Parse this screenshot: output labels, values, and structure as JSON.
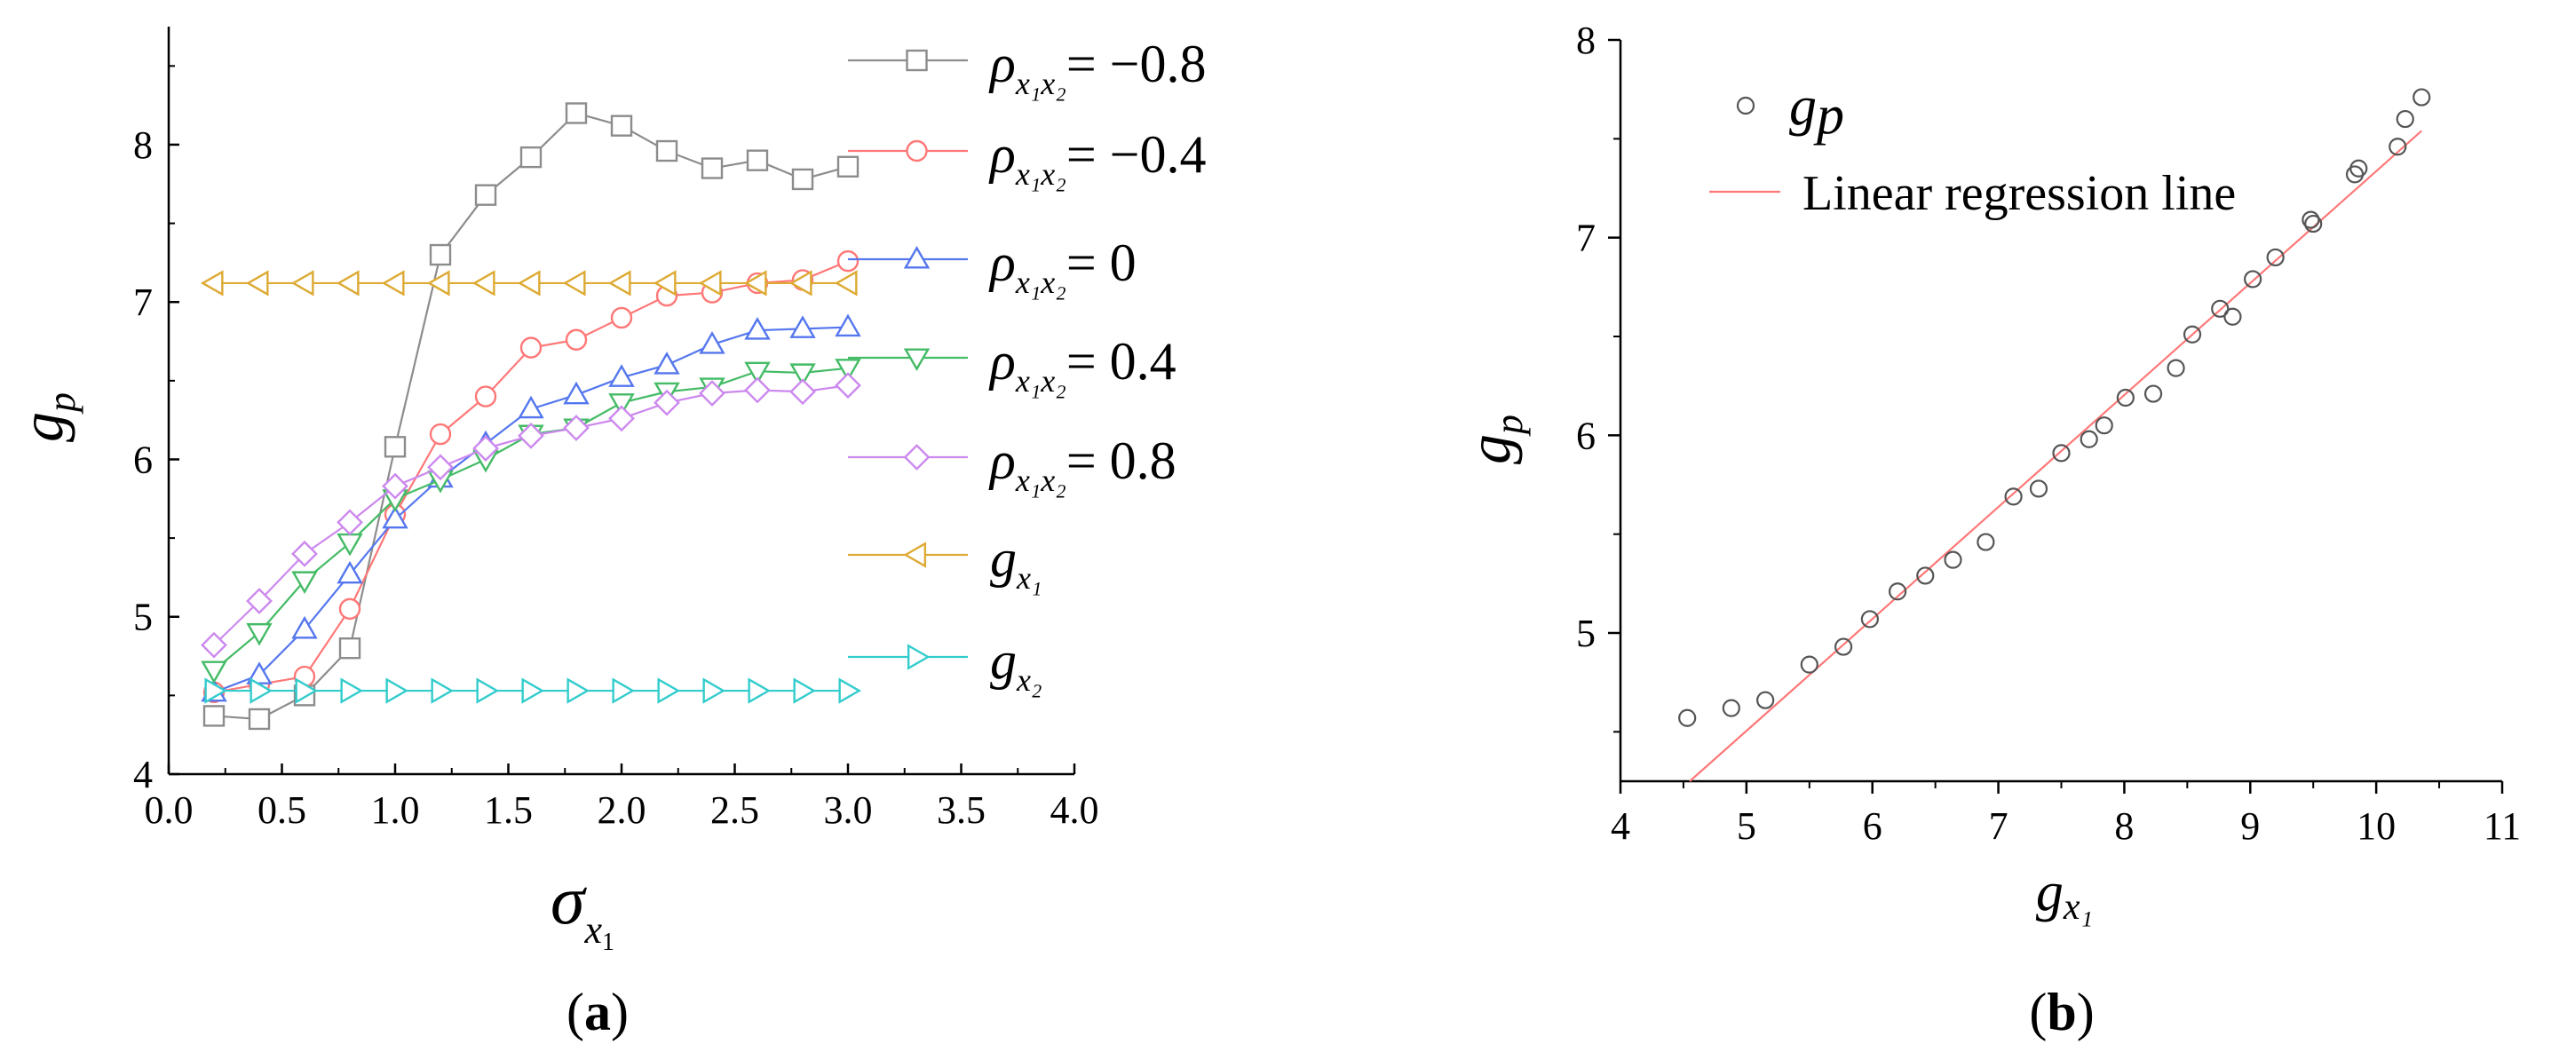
{
  "chart_data": [
    {
      "panel": "(a)",
      "type": "line",
      "xlabel": {
        "symbol": "σ",
        "sub": "x",
        "subsub": "1"
      },
      "ylabel": {
        "symbol": "g",
        "sub": "p"
      },
      "xlim": [
        0.0,
        4.0
      ],
      "ylim": [
        4,
        8.75
      ],
      "xticks": [
        "0.0",
        "0.5",
        "1.0",
        "1.5",
        "2.0",
        "2.5",
        "3.0",
        "3.5",
        "4.0"
      ],
      "yticks": [
        "4",
        "5",
        "6",
        "7",
        "8"
      ],
      "x": [
        0.2,
        0.4,
        0.6,
        0.8,
        1.0,
        1.2,
        1.4,
        1.6,
        1.8,
        2.0,
        2.2,
        2.4,
        2.6,
        2.8,
        3.0
      ],
      "series": [
        {
          "symbol": "ρ",
          "sub": "x₁x₂",
          "rest": "= −0.8",
          "color": "#8c8c8c",
          "marker": "square",
          "values": [
            4.37,
            4.35,
            4.5,
            4.8,
            6.08,
            7.3,
            7.68,
            7.92,
            8.2,
            8.12,
            7.96,
            7.85,
            7.9,
            7.78,
            7.86
          ]
        },
        {
          "symbol": "ρ",
          "sub": "x₁x₂",
          "rest": "= −0.4",
          "color": "#ff7777",
          "marker": "circle",
          "values": [
            4.52,
            4.57,
            4.62,
            5.05,
            5.65,
            6.16,
            6.4,
            6.71,
            6.76,
            6.9,
            7.04,
            7.06,
            7.12,
            7.14,
            7.26
          ]
        },
        {
          "symbol": "ρ",
          "sub": "x₁x₂",
          "rest": "= 0",
          "color": "#5577ee",
          "marker": "triangle-up",
          "values": [
            4.52,
            4.63,
            4.92,
            5.27,
            5.62,
            5.88,
            6.1,
            6.32,
            6.41,
            6.52,
            6.6,
            6.73,
            6.82,
            6.83,
            6.84
          ]
        },
        {
          "symbol": "ρ",
          "sub": "x₁x₂",
          "rest": "= 0.4",
          "color": "#44bb66",
          "marker": "triangle-down",
          "values": [
            4.66,
            4.9,
            5.23,
            5.47,
            5.75,
            5.87,
            6.0,
            6.16,
            6.2,
            6.36,
            6.43,
            6.46,
            6.56,
            6.55,
            6.58
          ]
        },
        {
          "symbol": "ρ",
          "sub": "x₁x₂",
          "rest": "= 0.8",
          "color": "#cc88ee",
          "marker": "diamond",
          "values": [
            4.82,
            5.1,
            5.4,
            5.6,
            5.83,
            5.95,
            6.07,
            6.15,
            6.2,
            6.26,
            6.36,
            6.42,
            6.44,
            6.43,
            6.47
          ]
        },
        {
          "symbol": "g",
          "sub": "x₁",
          "rest": "",
          "color": "#ddaa33",
          "marker": "triangle-left",
          "values": [
            7.12,
            7.12,
            7.12,
            7.12,
            7.12,
            7.12,
            7.12,
            7.12,
            7.12,
            7.12,
            7.12,
            7.12,
            7.12,
            7.12,
            7.12
          ]
        },
        {
          "symbol": "g",
          "sub": "x₂",
          "rest": "",
          "color": "#33cccc",
          "marker": "triangle-right",
          "values": [
            4.53,
            4.53,
            4.53,
            4.53,
            4.53,
            4.53,
            4.53,
            4.53,
            4.53,
            4.53,
            4.53,
            4.53,
            4.53,
            4.53,
            4.53
          ]
        }
      ]
    },
    {
      "panel": "(b)",
      "type": "scatter",
      "xlabel": {
        "symbol": "g",
        "sub": "x₁"
      },
      "ylabel": {
        "symbol": "g",
        "sub": "p"
      },
      "xlim": [
        4,
        11
      ],
      "ylim": [
        4.25,
        8
      ],
      "xticks": [
        "4",
        "5",
        "6",
        "7",
        "8",
        "9",
        "10",
        "11"
      ],
      "yticks": [
        "5",
        "6",
        "7",
        "8"
      ],
      "scatter": {
        "symbol": "g",
        "sub": "p",
        "color": "#555555",
        "marker": "circle",
        "x": [
          4.53,
          4.88,
          5.15,
          5.5,
          5.77,
          5.98,
          6.2,
          6.42,
          6.64,
          6.9,
          7.12,
          7.32,
          7.5,
          7.72,
          7.84,
          8.01,
          8.23,
          8.41,
          8.54,
          8.76,
          8.86,
          9.02,
          9.2,
          9.48,
          9.5,
          9.83,
          9.86,
          10.17,
          10.23,
          10.36
        ],
        "y": [
          4.57,
          4.62,
          4.66,
          4.84,
          4.93,
          5.07,
          5.21,
          5.29,
          5.37,
          5.46,
          5.69,
          5.73,
          5.91,
          5.98,
          6.05,
          6.19,
          6.21,
          6.34,
          6.51,
          6.64,
          6.6,
          6.79,
          6.9,
          7.09,
          7.07,
          7.32,
          7.35,
          7.46,
          7.6,
          7.71
        ]
      },
      "regression": {
        "label": "Linear regression line",
        "color": "#ff7777",
        "x": [
          4.55,
          10.36
        ],
        "y": [
          4.25,
          7.54
        ]
      }
    }
  ]
}
